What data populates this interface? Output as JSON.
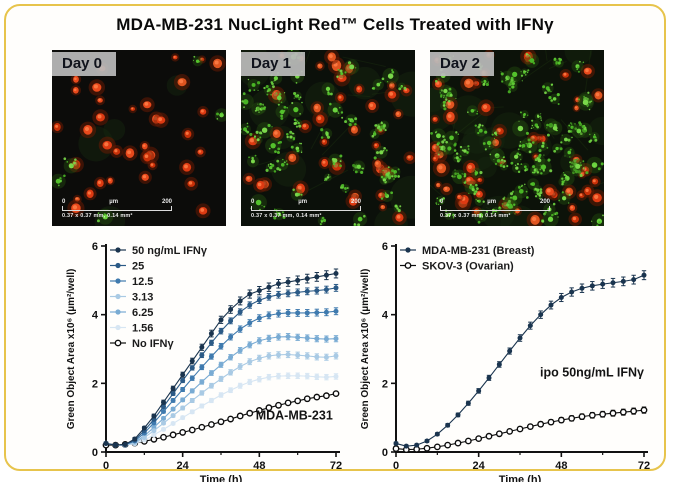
{
  "title": "MDA-MB-231 NucLight Red™ Cells Treated with IFNγ",
  "theme": {
    "border_color": "#e7c44c",
    "background": "#fffefc",
    "axis_color": "#111111",
    "day_label_bg": "#bababa",
    "day_label_text": "#10131c",
    "red_cell_color": "#dd3a12",
    "green_cell_color": "#54c22c"
  },
  "microscopy": {
    "scale": {
      "zero": "0",
      "unit": "µm",
      "max": "200",
      "dims": "0.37 x 0.37 mm, 0.14 mm²"
    },
    "panels": [
      {
        "label": "Day 0",
        "seed": 7,
        "red_cells": 36,
        "green_cells": 5,
        "haze": 4,
        "filaments": 0,
        "bg": "#0c0c0a"
      },
      {
        "label": "Day 1",
        "seed": 13,
        "red_cells": 42,
        "green_cells": 52,
        "haze": 10,
        "filaments": 9,
        "bg": "#0b100a"
      },
      {
        "label": "Day 2",
        "seed": 29,
        "red_cells": 55,
        "green_cells": 85,
        "haze": 14,
        "filaments": 13,
        "bg": "#0c1209"
      }
    ]
  },
  "chart_data": [
    {
      "type": "line",
      "title": "",
      "xlabel": "Time (h)",
      "ylabel": "Green Object Area x10⁶ (µm²/well)",
      "xlim": [
        0,
        72
      ],
      "ylim": [
        0,
        6
      ],
      "xticks": [
        0,
        24,
        48,
        72
      ],
      "xticks_minor": [
        12,
        36,
        60
      ],
      "yticks": [
        0,
        2,
        4,
        6
      ],
      "grid": false,
      "legend_position": "top-left",
      "annotation": {
        "text": "MDA-MB-231",
        "x": 71,
        "y": 0.95,
        "anchor": "end"
      },
      "x": [
        0,
        3,
        6,
        9,
        12,
        15,
        18,
        21,
        24,
        27,
        30,
        33,
        36,
        39,
        42,
        45,
        48,
        51,
        54,
        57,
        60,
        63,
        66,
        69,
        72
      ],
      "series": [
        {
          "name": "50 ng/mL IFNγ",
          "color": "#1a344e",
          "marker": "filled",
          "error": 0.13,
          "values": [
            0.25,
            0.2,
            0.22,
            0.38,
            0.7,
            1.05,
            1.45,
            1.85,
            2.25,
            2.65,
            3.05,
            3.45,
            3.85,
            4.15,
            4.4,
            4.6,
            4.7,
            4.8,
            4.9,
            4.95,
            5.0,
            5.05,
            5.1,
            5.15,
            5.2
          ]
        },
        {
          "name": "25",
          "color": "#2b5a86",
          "marker": "filled",
          "error": 0.1,
          "values": [
            0.25,
            0.2,
            0.21,
            0.35,
            0.62,
            0.95,
            1.32,
            1.7,
            2.08,
            2.45,
            2.82,
            3.18,
            3.52,
            3.82,
            4.08,
            4.28,
            4.42,
            4.52,
            4.58,
            4.62,
            4.65,
            4.68,
            4.7,
            4.73,
            4.78
          ]
        },
        {
          "name": "12.5",
          "color": "#3f7aae",
          "marker": "filled",
          "error": 0.1,
          "values": [
            0.25,
            0.2,
            0.21,
            0.32,
            0.55,
            0.85,
            1.18,
            1.5,
            1.82,
            2.15,
            2.47,
            2.78,
            3.08,
            3.35,
            3.58,
            3.76,
            3.9,
            3.98,
            4.03,
            4.05,
            4.05,
            4.05,
            4.06,
            4.07,
            4.1
          ]
        },
        {
          "name": "3.13",
          "color": "#a9cae4",
          "marker": "filled",
          "error": 0.09,
          "values": [
            0.25,
            0.2,
            0.2,
            0.26,
            0.42,
            0.62,
            0.84,
            1.06,
            1.28,
            1.5,
            1.72,
            1.93,
            2.13,
            2.32,
            2.49,
            2.63,
            2.73,
            2.8,
            2.83,
            2.84,
            2.82,
            2.8,
            2.77,
            2.76,
            2.8
          ]
        },
        {
          "name": "6.25",
          "color": "#79abd3",
          "marker": "filled",
          "error": 0.09,
          "values": [
            0.25,
            0.2,
            0.2,
            0.28,
            0.47,
            0.72,
            0.98,
            1.25,
            1.52,
            1.78,
            2.04,
            2.3,
            2.54,
            2.76,
            2.96,
            3.12,
            3.24,
            3.31,
            3.35,
            3.36,
            3.34,
            3.32,
            3.3,
            3.29,
            3.3
          ]
        },
        {
          "name": "1.56",
          "color": "#d7e6f3",
          "marker": "filled",
          "error": 0.08,
          "values": [
            0.25,
            0.2,
            0.2,
            0.24,
            0.35,
            0.5,
            0.66,
            0.83,
            1.0,
            1.17,
            1.34,
            1.5,
            1.66,
            1.8,
            1.93,
            2.04,
            2.12,
            2.18,
            2.21,
            2.22,
            2.22,
            2.21,
            2.19,
            2.18,
            2.2
          ]
        },
        {
          "name": "No IFNγ",
          "color": "#0d0d0d",
          "marker": "open",
          "error": 0.04,
          "values": [
            0.2,
            0.2,
            0.22,
            0.26,
            0.31,
            0.37,
            0.43,
            0.5,
            0.57,
            0.64,
            0.72,
            0.8,
            0.88,
            0.96,
            1.05,
            1.13,
            1.21,
            1.29,
            1.36,
            1.43,
            1.49,
            1.55,
            1.6,
            1.64,
            1.7
          ]
        }
      ]
    },
    {
      "type": "line",
      "title": "",
      "xlabel": "Time (h)",
      "ylabel": "Green Object Area x10⁶ (µm²/well)",
      "xlim": [
        0,
        72
      ],
      "ylim": [
        0,
        6
      ],
      "xticks": [
        0,
        24,
        48,
        72
      ],
      "xticks_minor": [
        12,
        36,
        60
      ],
      "yticks": [
        0,
        2,
        4,
        6
      ],
      "grid": false,
      "legend_position": "top-left",
      "annotation": {
        "text": "ipo 50ng/mL IFNγ",
        "x": 72,
        "y": 2.2,
        "anchor": "end"
      },
      "x": [
        0,
        3,
        6,
        9,
        12,
        15,
        18,
        21,
        24,
        27,
        30,
        33,
        36,
        39,
        42,
        45,
        48,
        51,
        54,
        57,
        60,
        63,
        66,
        69,
        72
      ],
      "series": [
        {
          "name": "MDA-MB-231 (Breast)",
          "color": "#1a344e",
          "marker": "filled",
          "error": 0.13,
          "values": [
            0.25,
            0.17,
            0.2,
            0.32,
            0.52,
            0.78,
            1.08,
            1.42,
            1.78,
            2.16,
            2.55,
            2.94,
            3.32,
            3.68,
            4.0,
            4.28,
            4.5,
            4.66,
            4.77,
            4.84,
            4.89,
            4.93,
            4.97,
            5.02,
            5.15
          ]
        },
        {
          "name": "SKOV-3 (Ovarian)",
          "color": "#0d0d0d",
          "marker": "open",
          "error": 0.09,
          "values": [
            0.1,
            0.07,
            0.08,
            0.11,
            0.15,
            0.2,
            0.26,
            0.32,
            0.39,
            0.46,
            0.53,
            0.6,
            0.67,
            0.74,
            0.81,
            0.87,
            0.93,
            0.98,
            1.03,
            1.07,
            1.1,
            1.13,
            1.16,
            1.19,
            1.22
          ]
        }
      ]
    }
  ]
}
